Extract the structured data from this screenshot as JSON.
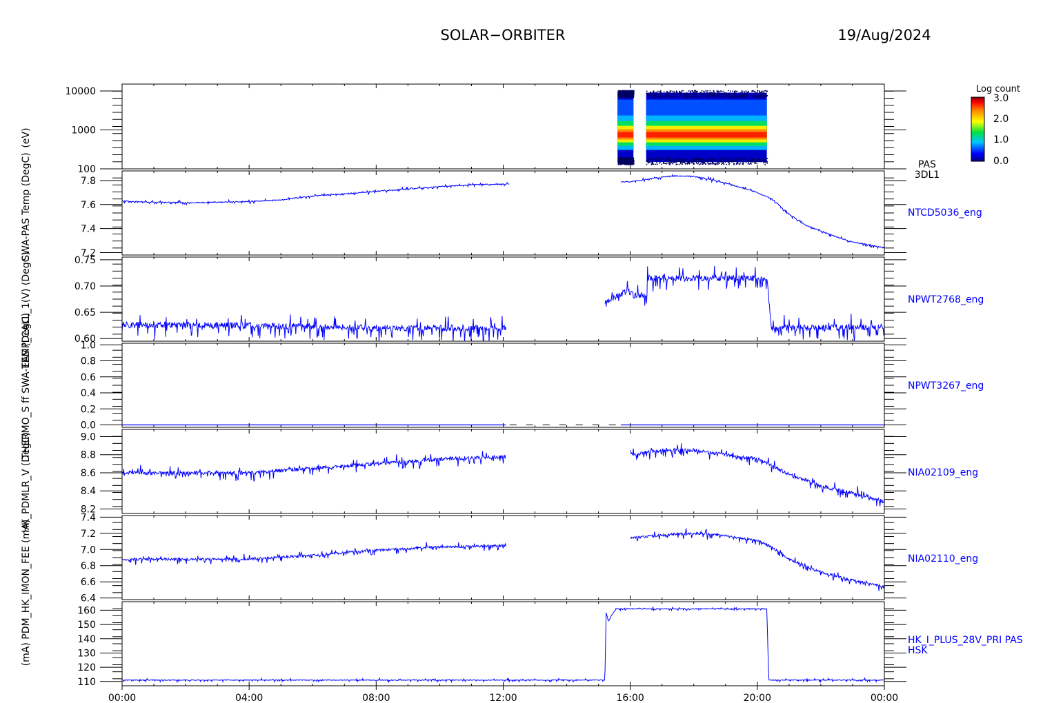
{
  "header": {
    "mission": "SOLAR−ORBITER",
    "date": "19/Aug/2024"
  },
  "x_ticks": [
    "00:00",
    "04:00",
    "08:00",
    "12:00",
    "16:00",
    "20:00",
    "00:00"
  ],
  "colorbar": {
    "title": "Log count",
    "ticks": [
      "3.0",
      "2.0",
      "1.0",
      "0.0"
    ],
    "range": [
      0,
      3
    ]
  },
  "y_axis_labels": [
    "(eV)",
    "SWA-PAS Temp (DegC)",
    "TEMP_CALL_1(V) (DegC)",
    "THERMO_S ff SWA-EAS (DegC)",
    "HK_PDMLR_V (DegC)",
    "(mA) PDM_HK_IMON_FEE (mA)"
  ],
  "colors": {
    "trace": "#0000ff",
    "axes": "#000000",
    "background": "#ffffff"
  },
  "chart_data": [
    {
      "type": "heatmap",
      "name": "PAS",
      "label": [
        "PAS",
        "3DL1"
      ],
      "x_unit": "hours",
      "xlim": [
        0,
        24
      ],
      "y_scale": "log",
      "ylim": [
        100,
        15000
      ],
      "y_ticks": [
        "10000",
        "1000",
        "100"
      ],
      "y_tick_values": [
        10000,
        1000,
        100
      ],
      "data_intervals_hours": [
        [
          15.6,
          16.1
        ],
        [
          16.5,
          20.3
        ]
      ],
      "peak_energy_eV": 750,
      "energy_extent_eV": [
        150,
        9000
      ]
    },
    {
      "type": "line",
      "name": "NTCD5036_eng",
      "xlim": [
        0,
        24
      ],
      "ylim": [
        7.18,
        7.88
      ],
      "y_ticks": [
        "7.8",
        "7.6",
        "7.4",
        "7.2"
      ],
      "y_tick_values": [
        7.8,
        7.6,
        7.4,
        7.2
      ],
      "x": [
        0,
        1,
        2,
        3,
        4,
        5,
        6,
        7,
        8,
        9,
        10,
        11,
        12.2,
        14.5,
        15.5,
        16,
        16.5,
        17,
        17.5,
        18,
        18.5,
        19,
        19.5,
        20,
        20.5,
        21,
        21.5,
        22,
        22.5,
        23,
        24
      ],
      "y": [
        7.63,
        7.62,
        7.615,
        7.62,
        7.625,
        7.64,
        7.67,
        7.69,
        7.71,
        7.73,
        7.75,
        7.765,
        7.77,
        7.78,
        7.79,
        7.79,
        7.81,
        7.83,
        7.84,
        7.835,
        7.81,
        7.78,
        7.74,
        7.7,
        7.64,
        7.52,
        7.43,
        7.38,
        7.33,
        7.29,
        7.24
      ],
      "gap_hours": [
        [
          12.2,
          15.7
        ]
      ],
      "noise": 0.004
    },
    {
      "type": "line",
      "name": "NPWT2768_eng",
      "xlim": [
        0,
        24
      ],
      "ylim": [
        0.595,
        0.755
      ],
      "y_ticks": [
        "0.75",
        "0.70",
        "0.65",
        "0.60"
      ],
      "y_tick_values": [
        0.75,
        0.7,
        0.65,
        0.6
      ],
      "x": [
        0,
        4,
        8,
        12.1,
        15.2,
        15.9,
        16.1,
        16.5,
        16.55,
        20.3,
        20.45,
        24
      ],
      "y": [
        0.626,
        0.625,
        0.62,
        0.62,
        0.67,
        0.69,
        0.682,
        0.682,
        0.715,
        0.715,
        0.62,
        0.622
      ],
      "gap_hours": [
        [
          12.1,
          15.2
        ]
      ],
      "noise": 0.006
    },
    {
      "type": "line",
      "name": "NPWT3267_eng",
      "xlim": [
        0,
        24
      ],
      "ylim": [
        -0.03,
        1.02
      ],
      "y_ticks": [
        "1.0",
        "0.8",
        "0.6",
        "0.4",
        "0.2",
        "0.0"
      ],
      "y_tick_values": [
        1.0,
        0.8,
        0.6,
        0.4,
        0.2,
        0.0
      ],
      "x": [
        0,
        24
      ],
      "y": [
        0,
        0
      ],
      "gap_hours": [
        [
          12.1,
          15.7
        ]
      ],
      "noise": 0
    },
    {
      "type": "line",
      "name": "NIA02109_eng",
      "xlim": [
        0,
        24
      ],
      "ylim": [
        8.15,
        9.08
      ],
      "y_ticks": [
        "9.0",
        "8.8",
        "8.6",
        "8.4",
        "8.2"
      ],
      "y_tick_values": [
        9.0,
        8.8,
        8.6,
        8.4,
        8.2
      ],
      "x": [
        0,
        4,
        6,
        8,
        10,
        12.1,
        16,
        17,
        18,
        19,
        20,
        20.5,
        21,
        22,
        23,
        24
      ],
      "y": [
        8.6,
        8.6,
        8.65,
        8.7,
        8.75,
        8.78,
        8.8,
        8.85,
        8.85,
        8.8,
        8.75,
        8.68,
        8.58,
        8.45,
        8.38,
        8.28
      ],
      "gap_hours": [
        [
          12.1,
          16.0
        ]
      ],
      "noise": 0.02
    },
    {
      "type": "line",
      "name": "NIA02110_eng",
      "xlim": [
        0,
        24
      ],
      "ylim": [
        6.38,
        7.42
      ],
      "y_ticks": [
        "7.4",
        "7.2",
        "7.0",
        "6.8",
        "6.6",
        "6.4"
      ],
      "y_tick_values": [
        7.4,
        7.2,
        7.0,
        6.8,
        6.6,
        6.4
      ],
      "x": [
        0,
        4,
        6,
        8,
        10,
        12.1,
        16,
        17,
        18,
        19,
        20,
        20.5,
        21,
        22,
        23,
        24
      ],
      "y": [
        6.88,
        6.88,
        6.93,
        6.99,
        7.03,
        7.05,
        7.14,
        7.18,
        7.2,
        7.17,
        7.11,
        7.02,
        6.88,
        6.72,
        6.62,
        6.54
      ],
      "gap_hours": [
        [
          12.1,
          16.0
        ]
      ],
      "noise": 0.015
    },
    {
      "type": "line",
      "name": "HK_I_PLUS_28V_PRI PAS HSK",
      "label": [
        "HK_I_PLUS_28V_PRI PAS",
        "HSK"
      ],
      "xlim": [
        0,
        24
      ],
      "ylim": [
        107,
        166
      ],
      "y_ticks": [
        "160",
        "150",
        "140",
        "130",
        "120",
        "110"
      ],
      "y_tick_values": [
        160,
        150,
        140,
        130,
        120,
        110
      ],
      "x": [
        0,
        15.2,
        15.24,
        15.32,
        15.4,
        15.55,
        20.3,
        20.36,
        24
      ],
      "y": [
        111,
        111,
        158,
        152,
        156,
        161,
        161,
        111,
        111
      ],
      "gap_hours": [],
      "noise": 0.3
    }
  ]
}
